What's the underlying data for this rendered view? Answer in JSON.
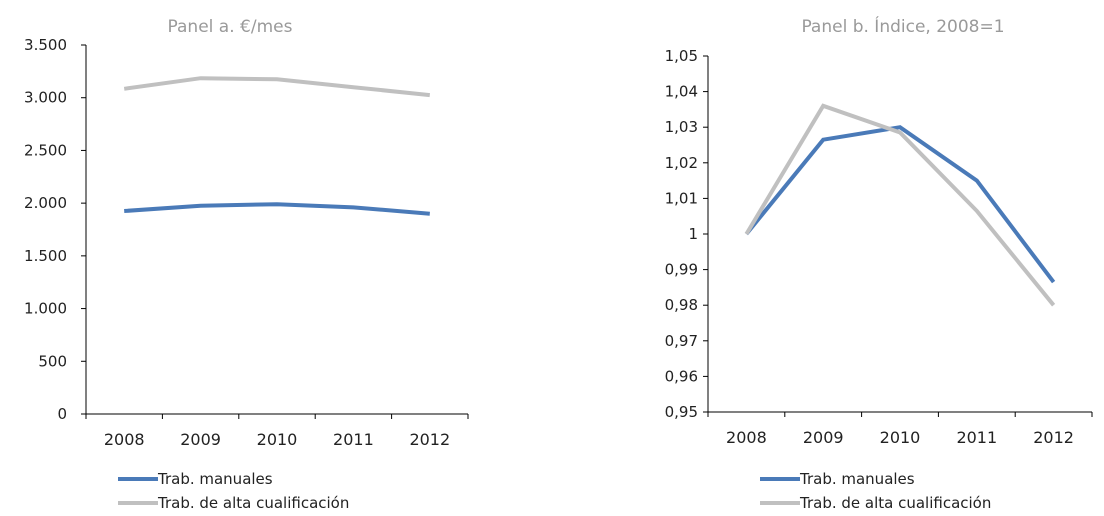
{
  "colors": {
    "manual": "#4a7ab8",
    "high": "#c0c0c0",
    "axis": "#000000",
    "panel_title": "#9a9a9a",
    "text": "#222222"
  },
  "chart_data": [
    {
      "type": "line",
      "title": "Panel a. €/mes",
      "categories": [
        "2008",
        "2009",
        "2010",
        "2011",
        "2012"
      ],
      "ylim": [
        0,
        3500
      ],
      "yticks": [
        0,
        500,
        1000,
        1500,
        2000,
        2500,
        3000,
        3500
      ],
      "ytick_labels": [
        "0",
        "500",
        "1.000",
        "1.500",
        "2.000",
        "2.500",
        "3.000",
        "3.500"
      ],
      "grid": false,
      "legend": "bottom-left",
      "series": [
        {
          "name": "Trab. manuales",
          "values": [
            1925,
            1975,
            1990,
            1960,
            1900
          ]
        },
        {
          "name": "Trab. de alta cualificación",
          "values": [
            3085,
            3185,
            3175,
            3100,
            3025
          ]
        }
      ]
    },
    {
      "type": "line",
      "title": "Panel b. Índice, 2008=1",
      "categories": [
        "2008",
        "2009",
        "2010",
        "2011",
        "2012"
      ],
      "ylim": [
        0.95,
        1.05
      ],
      "yticks": [
        0.95,
        0.96,
        0.97,
        0.98,
        0.99,
        1.0,
        1.01,
        1.02,
        1.03,
        1.04,
        1.05
      ],
      "ytick_labels": [
        "0,95",
        "0,96",
        "0,97",
        "0,98",
        "0,99",
        "1",
        "1,01",
        "1,02",
        "1,03",
        "1,04",
        "1,05"
      ],
      "grid": false,
      "legend": "bottom-left",
      "series": [
        {
          "name": "Trab. manuales",
          "values": [
            1.0,
            1.0265,
            1.03,
            1.015,
            0.9865
          ]
        },
        {
          "name": "Trab. de alta cualificación",
          "values": [
            1.0,
            1.036,
            1.0285,
            1.0065,
            0.98
          ]
        }
      ]
    }
  ]
}
